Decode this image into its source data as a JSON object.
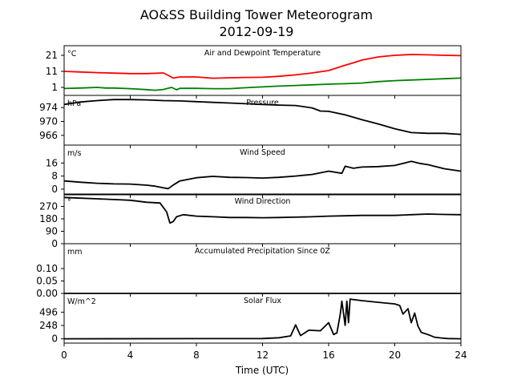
{
  "figure": {
    "title": "AO&SS Building Tower Meteorogram",
    "subtitle": "2012-09-19",
    "xlabel": "Time (UTC)"
  },
  "chart_data": [
    {
      "type": "line",
      "title": "Air and Dewpoint Temperature",
      "unit": "°C",
      "ylim": [
        -4,
        27
      ],
      "yticks": [
        "1",
        "11",
        "21"
      ],
      "xlim": [
        0,
        24
      ],
      "xticks": [
        "0",
        "4",
        "8",
        "12",
        "16",
        "20",
        "24"
      ],
      "series": [
        {
          "color": "#ff0000",
          "x": [
            0,
            1,
            2,
            3,
            4,
            5,
            6,
            6.3,
            6.6,
            7,
            8,
            9,
            10,
            11,
            12,
            13,
            14,
            15,
            16,
            17,
            17.5,
            18,
            19,
            20,
            21,
            22,
            23,
            24
          ],
          "y": [
            11,
            10.6,
            10.2,
            9.9,
            9.6,
            9.6,
            10,
            8.5,
            6.8,
            7.5,
            7.5,
            6.7,
            7,
            7.2,
            7.3,
            7.9,
            8.8,
            10,
            11.5,
            14.8,
            16.3,
            18,
            20,
            21,
            21.5,
            21.3,
            21,
            20.8
          ]
        },
        {
          "color": "#008000",
          "x": [
            0,
            1,
            2,
            2.5,
            3,
            4,
            5,
            5.5,
            6,
            6.5,
            6.8,
            7,
            8,
            9,
            10,
            11,
            12,
            13,
            14,
            15,
            16,
            17,
            18,
            19,
            20,
            21,
            22,
            23,
            24
          ],
          "y": [
            0.3,
            0.6,
            1,
            0.6,
            0.6,
            0.2,
            -0.4,
            -0.8,
            -0.3,
            1,
            -0.5,
            0.4,
            0.4,
            0.2,
            0.2,
            0.8,
            1.3,
            1.8,
            2.2,
            2.6,
            3,
            3.3,
            3.7,
            4.6,
            5.2,
            5.6,
            6,
            6.4,
            6.8
          ]
        }
      ]
    },
    {
      "type": "line",
      "title": "Pressure",
      "unit": "hPa",
      "ylim": [
        963.2,
        977.5
      ],
      "yticks": [
        "966",
        "970",
        "974"
      ],
      "xlim": [
        0,
        24
      ],
      "series": [
        {
          "color": "#000000",
          "x": [
            0,
            1,
            2,
            3,
            4,
            5,
            6,
            7,
            8,
            9,
            10,
            11,
            12,
            13,
            14,
            15,
            15.5,
            16,
            17,
            18,
            19,
            20,
            21,
            22,
            23,
            24
          ],
          "y": [
            974.9,
            975.6,
            976,
            976.3,
            976.3,
            976.2,
            976,
            975.9,
            975.7,
            975.5,
            975.3,
            975.1,
            974.9,
            974.7,
            974.6,
            973.9,
            973,
            972.9,
            971.9,
            970.5,
            969.3,
            967.9,
            966.8,
            966.6,
            966.6,
            966.3
          ]
        }
      ]
    },
    {
      "type": "line",
      "title": "Wind Speed",
      "unit": "m/s",
      "ylim": [
        -3.5,
        27
      ],
      "yticks": [
        "0",
        "8",
        "16"
      ],
      "xlim": [
        0,
        24
      ],
      "series": [
        {
          "color": "#000000",
          "x": [
            0,
            1,
            2,
            3,
            4,
            5,
            5.5,
            6,
            6.3,
            6.6,
            7,
            8,
            9,
            10,
            11,
            12,
            13,
            14,
            15,
            16,
            16.8,
            17,
            17.5,
            18,
            19,
            20,
            21,
            21.5,
            22,
            23,
            24
          ],
          "y": [
            5,
            4.2,
            3.6,
            3.2,
            3.1,
            2.4,
            1.8,
            0.8,
            0.3,
            2.5,
            5,
            7,
            7.8,
            7.2,
            7.1,
            6.8,
            7.2,
            8,
            9,
            11,
            9.7,
            14,
            12.8,
            13.5,
            13.8,
            14.5,
            17,
            15.8,
            15,
            12.5,
            11
          ]
        }
      ]
    },
    {
      "type": "line",
      "title": "Wind Direction",
      "unit": "°",
      "ylim": [
        0,
        360
      ],
      "yticks": [
        "0",
        "90",
        "180",
        "270"
      ],
      "xlim": [
        0,
        24
      ],
      "series": [
        {
          "color": "#000000",
          "x": [
            0,
            1,
            2,
            3,
            4,
            5,
            5.8,
            6.2,
            6.4,
            6.6,
            6.8,
            7.2,
            8,
            9,
            10,
            11,
            12,
            13,
            14,
            15,
            16,
            17,
            18,
            19,
            20,
            21,
            22,
            23,
            24
          ],
          "y": [
            335,
            330,
            325,
            320,
            315,
            300,
            295,
            230,
            150,
            160,
            195,
            210,
            200,
            195,
            190,
            190,
            188,
            190,
            192,
            195,
            200,
            202,
            205,
            205,
            205,
            210,
            215,
            212,
            210
          ]
        }
      ]
    },
    {
      "type": "line",
      "title": "Accumulated Precipitation Since 0Z",
      "unit": "mm",
      "ylim": [
        0,
        0.2
      ],
      "yticks": [
        "0.00",
        "0.05",
        "0.10"
      ],
      "xlim": [
        0,
        24
      ],
      "series": [
        {
          "color": "#000000",
          "x": [
            0,
            24
          ],
          "y": [
            0,
            0
          ]
        }
      ]
    },
    {
      "type": "line",
      "title": "Solar Flux",
      "unit": "W/m^2",
      "ylim": [
        -80,
        845
      ],
      "yticks": [
        "0",
        "248",
        "496"
      ],
      "xlim": [
        0,
        24
      ],
      "series": [
        {
          "color": "#000000",
          "x": [
            0,
            12,
            13,
            13.7,
            14,
            14.3,
            14.8,
            15.5,
            16,
            16.3,
            16.5,
            16.7,
            16.8,
            17,
            17.1,
            17.2,
            17.3,
            17.5,
            18,
            19,
            20,
            20.3,
            20.5,
            20.8,
            21,
            21.2,
            21.4,
            21.6,
            22,
            22.4,
            22.8,
            23.2,
            24
          ],
          "y": [
            0,
            5,
            20,
            55,
            260,
            60,
            160,
            150,
            300,
            80,
            110,
            450,
            700,
            250,
            700,
            300,
            740,
            730,
            710,
            680,
            650,
            620,
            460,
            560,
            300,
            480,
            240,
            120,
            80,
            30,
            15,
            5,
            0
          ]
        }
      ]
    }
  ]
}
